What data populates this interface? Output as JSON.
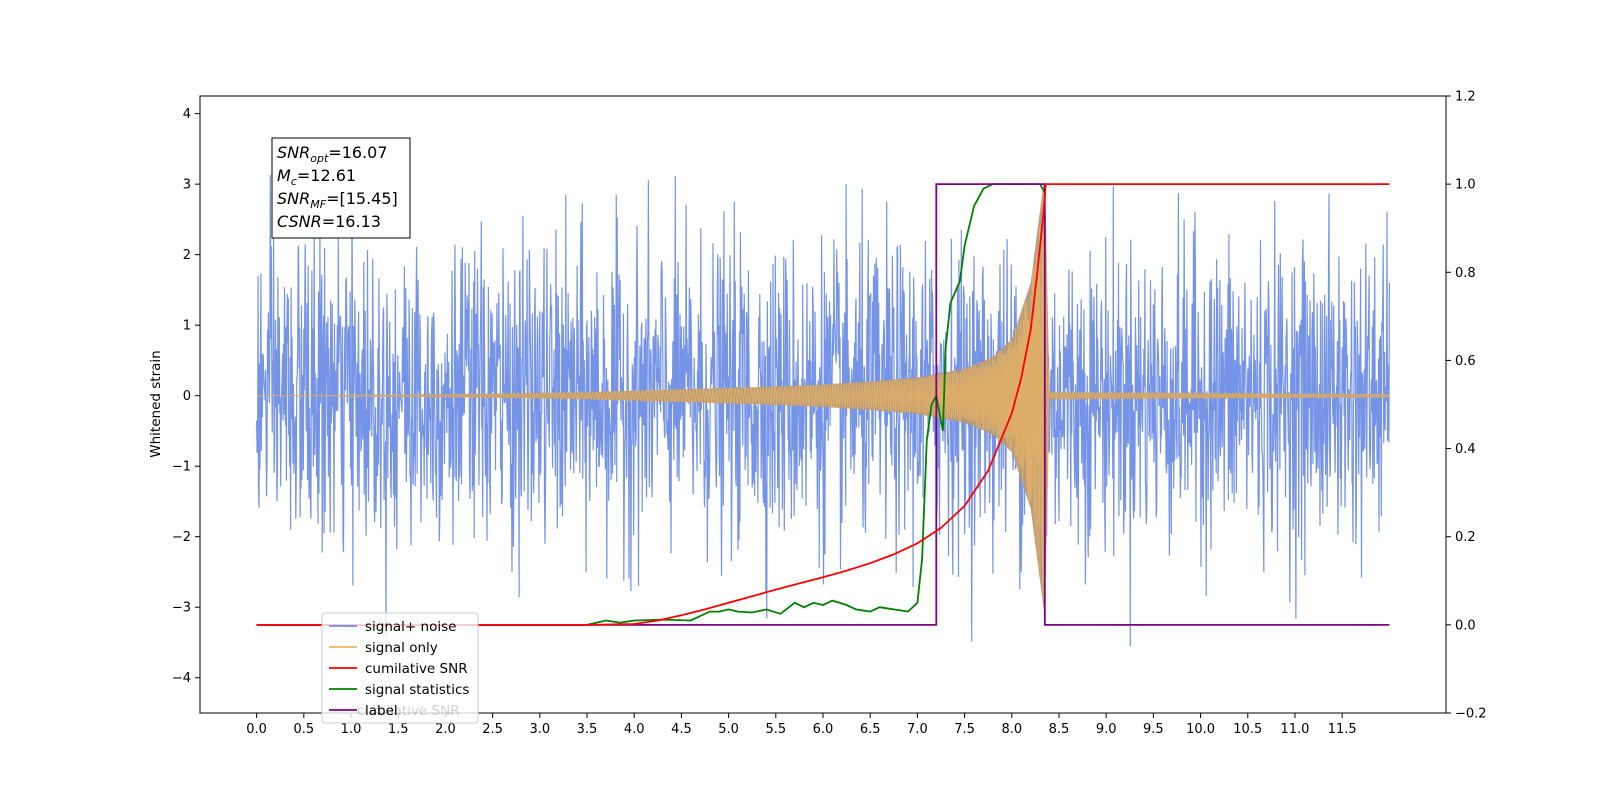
{
  "chart_data": {
    "type": "line",
    "xlabel": "",
    "ylabel": "Whitened strain",
    "xlim": [
      -0.6,
      12.6
    ],
    "ylim": [
      -4.5,
      4.25
    ],
    "y2lim": [
      -0.2,
      1.2
    ],
    "x_ticks": [
      "0.0",
      "0.5",
      "1.0",
      "1.5",
      "2.0",
      "2.5",
      "3.0",
      "3.5",
      "4.0",
      "4.5",
      "5.0",
      "5.5",
      "6.0",
      "6.5",
      "7.0",
      "7.5",
      "8.0",
      "8.5",
      "9.0",
      "9.5",
      "10.0",
      "10.5",
      "11.0",
      "11.5"
    ],
    "y_ticks": [
      "4",
      "3",
      "2",
      "1",
      "0",
      "−1",
      "−2",
      "−3",
      "−4"
    ],
    "y2_ticks": [
      "1.2",
      "1.0",
      "0.8",
      "0.6",
      "0.4",
      "0.2",
      "0.0",
      "−0.2"
    ],
    "grid": false,
    "legend_location": "lower-left",
    "colors": {
      "noise": "#6f8ee6",
      "signal": "#f0b560",
      "signal_overlap": "#b59a78",
      "cumulative": "#ff0000",
      "statistics": "#008000",
      "label": "#800080"
    },
    "series": [
      {
        "name": "signal+ noise",
        "axis": "left",
        "description_values": {
          "x_range": [
            0.0,
            12.0
          ],
          "amplitude_mean": 1.9,
          "amplitude_peaks": 3.85
        }
      },
      {
        "name": "signal only",
        "axis": "left",
        "x": [
          0.0,
          2.0,
          3.5,
          4.5,
          5.5,
          6.0,
          6.5,
          7.0,
          7.5,
          7.8,
          8.0,
          8.2,
          8.35,
          8.4,
          12.0
        ],
        "envelope": [
          0.0,
          0.02,
          0.05,
          0.09,
          0.13,
          0.16,
          0.2,
          0.26,
          0.38,
          0.55,
          0.8,
          1.6,
          3.15,
          0.05,
          0.02
        ]
      },
      {
        "name": "cumilative SNR",
        "axis": "right",
        "x": [
          0.0,
          3.5,
          4.0,
          4.25,
          4.5,
          4.75,
          5.0,
          5.25,
          5.5,
          5.75,
          6.0,
          6.25,
          6.5,
          6.75,
          7.0,
          7.25,
          7.5,
          7.75,
          8.0,
          8.1,
          8.2,
          8.27,
          8.33,
          8.36,
          12.0
        ],
        "values": [
          0.0,
          0.0,
          0.002,
          0.01,
          0.022,
          0.035,
          0.05,
          0.065,
          0.08,
          0.094,
          0.108,
          0.123,
          0.14,
          0.16,
          0.185,
          0.22,
          0.27,
          0.35,
          0.48,
          0.56,
          0.67,
          0.8,
          0.92,
          1.0,
          1.0
        ]
      },
      {
        "name": "signal statistics",
        "axis": "right",
        "x": [
          0.0,
          3.5,
          3.7,
          3.85,
          4.0,
          4.3,
          4.6,
          4.8,
          4.9,
          5.0,
          5.1,
          5.25,
          5.4,
          5.55,
          5.7,
          5.8,
          5.9,
          6.0,
          6.1,
          6.25,
          6.35,
          6.5,
          6.6,
          6.75,
          6.9,
          7.0,
          7.05,
          7.1,
          7.15,
          7.2,
          7.27,
          7.3,
          7.35,
          7.45,
          7.5,
          7.6,
          7.7,
          7.8,
          8.0,
          8.2,
          8.3,
          8.35
        ],
        "values": [
          0.0,
          0.0,
          0.01,
          0.005,
          0.01,
          0.012,
          0.01,
          0.03,
          0.03,
          0.035,
          0.03,
          0.028,
          0.035,
          0.025,
          0.05,
          0.04,
          0.05,
          0.045,
          0.055,
          0.045,
          0.035,
          0.03,
          0.04,
          0.035,
          0.03,
          0.05,
          0.15,
          0.42,
          0.5,
          0.52,
          0.44,
          0.63,
          0.73,
          0.78,
          0.86,
          0.95,
          0.99,
          1.0,
          1.0,
          1.0,
          1.0,
          0.98
        ]
      },
      {
        "name": "label",
        "axis": "right",
        "x": [
          0.0,
          7.2,
          7.2,
          8.35,
          8.35,
          12.0
        ],
        "values": [
          0.0,
          0.0,
          1.0,
          1.0,
          0.0,
          0.0
        ]
      }
    ],
    "legend": [
      {
        "label": "signal+ noise",
        "color": "#6f8ee6"
      },
      {
        "label": "signal only",
        "color": "#f0b560"
      },
      {
        "label": "cumilative SNR",
        "color": "#ff0000"
      },
      {
        "label": "signal statistics",
        "color": "#008000"
      },
      {
        "label": "label",
        "color": "#800080"
      }
    ],
    "legend_ghost_text": "cumilative SNR",
    "info_box": {
      "lines": [
        {
          "symbol": "SNR",
          "sub": "opt",
          "value": "=16.07"
        },
        {
          "symbol": "M",
          "sub": "c",
          "value": "=12.61"
        },
        {
          "symbol": "SNR",
          "sub": "MF",
          "value": "=[15.45]"
        },
        {
          "symbol": "CSNR",
          "sub": "",
          "value": "=16.13"
        }
      ]
    }
  }
}
